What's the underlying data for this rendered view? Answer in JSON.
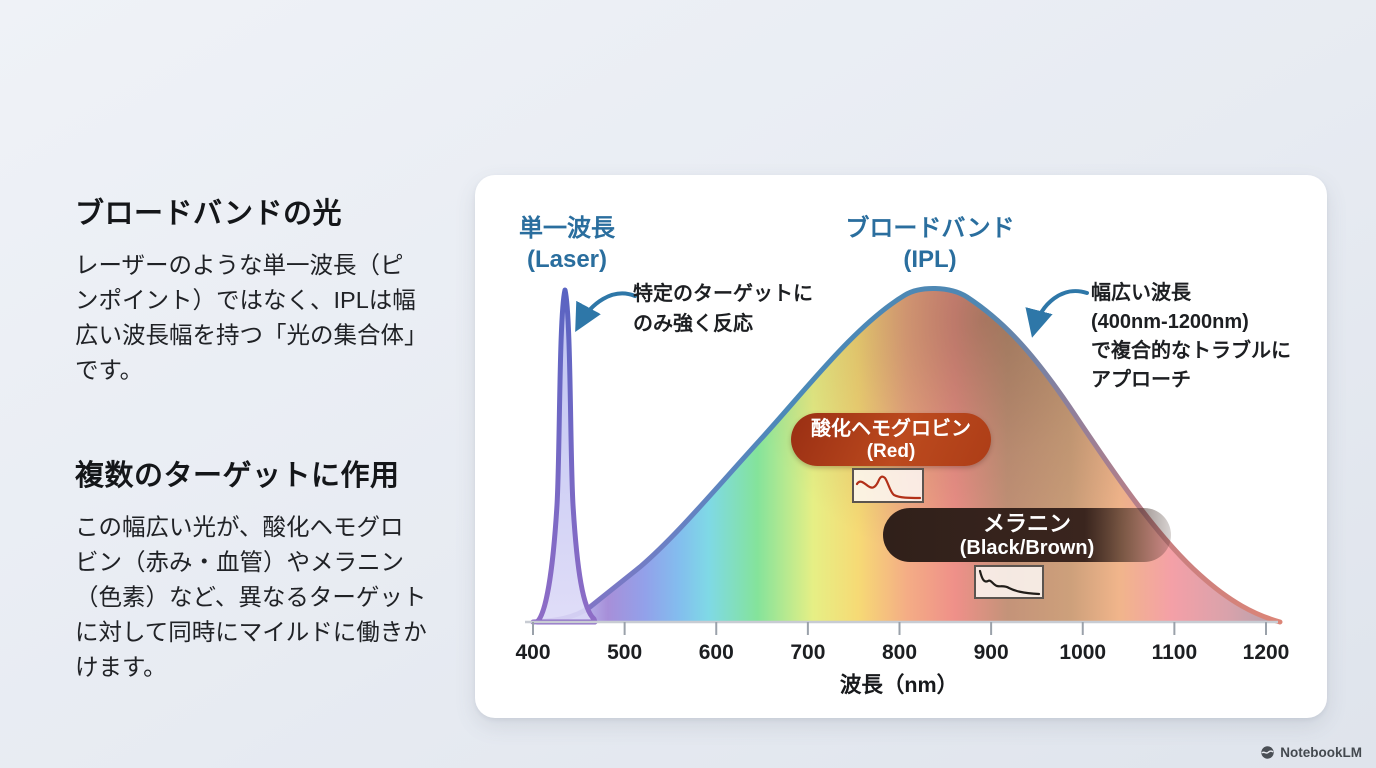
{
  "left_panel": {
    "section1": {
      "title": "ブロードバンドの光",
      "body": "レーザーのような単一波長（ピンポイント）ではなく、IPLは幅広い波長幅を持つ「光の集合体」です。"
    },
    "section2": {
      "title": "複数のターゲットに作用",
      "body": "この幅広い光が、酸化ヘモグロビン（赤み・血管）やメラニン（色素）など、異なるターゲットに対して同時にマイルドに働きかけます。"
    }
  },
  "chart": {
    "laser_label": {
      "line1": "単一波長",
      "line2": "(Laser)"
    },
    "ipl_label": {
      "line1": "ブロードバンド",
      "line2": "(IPL)"
    },
    "laser_annotation": {
      "line1": "特定のターゲットに",
      "line2": "のみ強く反応"
    },
    "ipl_annotation": {
      "line1": "幅広い波長",
      "line2": "(400nm-1200nm)",
      "line3": "で複合的なトラブルに",
      "line4": "アプローチ"
    },
    "hemoglobin_badge": {
      "line1": "酸化ヘモグロビン",
      "line2": "(Red)"
    },
    "melanin_badge": {
      "line1": "メラニン",
      "line2": "(Black/Brown)"
    }
  },
  "chart_data": {
    "type": "area",
    "title": "",
    "xlabel": "波長（nm）",
    "ylabel": "",
    "xlim": [
      400,
      1200
    ],
    "x_ticks": [
      400,
      500,
      600,
      700,
      800,
      900,
      1000,
      1100,
      1200
    ],
    "grid": false,
    "legend_position": "above-curves",
    "series": [
      {
        "name": "単一波長 (Laser)",
        "points": [
          [
            400,
            0
          ],
          [
            425,
            0.05
          ],
          [
            432,
            0.6
          ],
          [
            436,
            1.0
          ],
          [
            440,
            0.6
          ],
          [
            450,
            0.12
          ],
          [
            465,
            0.02
          ],
          [
            478,
            0
          ]
        ]
      },
      {
        "name": "ブロードバンド (IPL)",
        "points": [
          [
            400,
            0
          ],
          [
            460,
            0.02
          ],
          [
            500,
            0.12
          ],
          [
            550,
            0.3
          ],
          [
            600,
            0.45
          ],
          [
            650,
            0.55
          ],
          [
            700,
            0.68
          ],
          [
            750,
            0.84
          ],
          [
            800,
            0.97
          ],
          [
            835,
            1.0
          ],
          [
            900,
            0.93
          ],
          [
            950,
            0.78
          ],
          [
            1000,
            0.55
          ],
          [
            1050,
            0.38
          ],
          [
            1100,
            0.24
          ],
          [
            1150,
            0.12
          ],
          [
            1200,
            0.03
          ]
        ]
      }
    ],
    "spectrum_stops": [
      {
        "o": "0%",
        "c": "#c7c9f0"
      },
      {
        "o": "5.5%",
        "c": "#bcc1f1"
      },
      {
        "o": "10%",
        "c": "#a78fd9"
      },
      {
        "o": "15%",
        "c": "#92a1ea"
      },
      {
        "o": "19.5%",
        "c": "#83bdee"
      },
      {
        "o": "23.5%",
        "c": "#7fd9e6"
      },
      {
        "o": "30%",
        "c": "#84e39b"
      },
      {
        "o": "37.5%",
        "c": "#e6ef85"
      },
      {
        "o": "43.5%",
        "c": "#f6da75"
      },
      {
        "o": "50%",
        "c": "#f4ad85"
      },
      {
        "o": "56.5%",
        "c": "#ef9089"
      },
      {
        "o": "63.5%",
        "c": "#c49379"
      },
      {
        "o": "72%",
        "c": "#cda07b"
      },
      {
        "o": "78.5%",
        "c": "#f1b58b"
      },
      {
        "o": "85.5%",
        "c": "#f4a0a7"
      },
      {
        "o": "93%",
        "c": "#d9a2ab"
      },
      {
        "o": "100%",
        "c": "#b2a2ac"
      }
    ],
    "ipl_stroke_stops": [
      {
        "o": "0%",
        "c": "#8f6dc6"
      },
      {
        "o": "18%",
        "c": "#6b80c4"
      },
      {
        "o": "34%",
        "c": "#4b89b8"
      },
      {
        "o": "60%",
        "c": "#4f87b2"
      },
      {
        "o": "72%",
        "c": "#8f7f9b"
      },
      {
        "o": "85%",
        "c": "#c97f80"
      },
      {
        "o": "100%",
        "c": "#dc8577"
      }
    ],
    "laser_fill": {
      "top": "#b7bcf0",
      "bottom": "#dcd9f7"
    },
    "laser_stroke": {
      "top": "#5a64c2",
      "bottom": "#8e6cc6"
    }
  },
  "colors": {
    "curve_label": "#2a6e9e",
    "annotation_text": "#1d1f22",
    "arrow": "#2e77a8",
    "hemoglobin_badge_bg": "linear-gradient(115deg,#992e13 0%,#bc4a1e 55%,#ad3d17 100%)",
    "melanin_badge_bg": "linear-gradient(90deg,#30201a 0%,#3a251e 70%,rgba(58,37,30,0.2) 100%)",
    "hemoglobin_curve": "#b23018",
    "melanin_curve": "#211d19",
    "axis_line": "#c8ccd3",
    "tick": "#9aa1aa",
    "tick_label": "#1c1e21",
    "axis_label": "#17191c"
  },
  "footer": {
    "brand": "NotebookLM"
  }
}
